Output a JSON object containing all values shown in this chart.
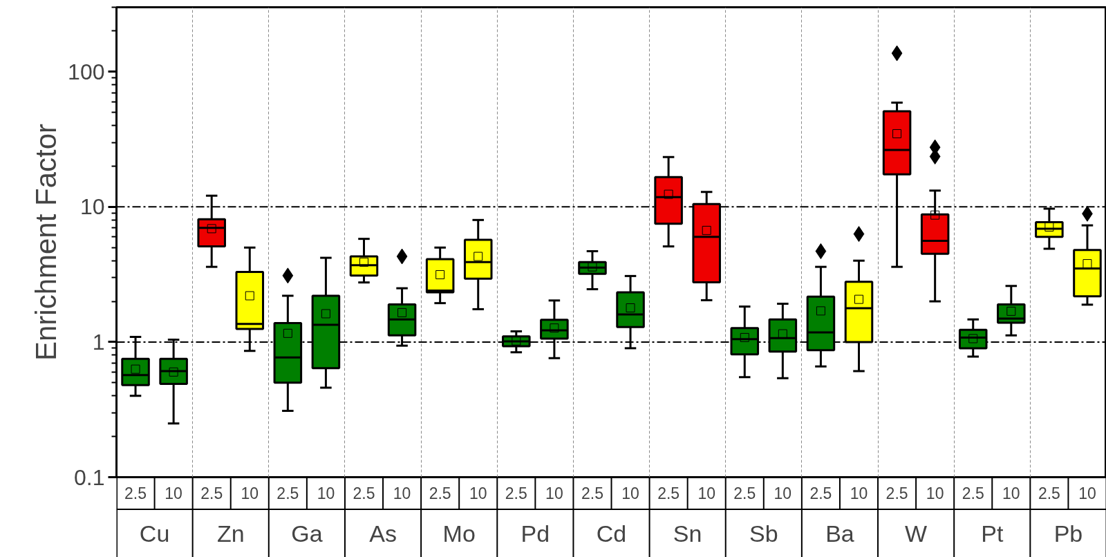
{
  "chart_data": {
    "type": "box",
    "ylabel": "Enrichment Factor",
    "categories": [
      "Cu",
      "Zn",
      "Ga",
      "As",
      "Mo",
      "Pd",
      "Cd",
      "Sn",
      "Sb",
      "Ba",
      "W",
      "Pt",
      "Pb"
    ],
    "series": [
      {
        "name": "2.5",
        "colors": [
          "#007f00",
          "#ee0000",
          "#007f00",
          "#ffff00",
          "#ffff00",
          "#007f00",
          "#007f00",
          "#ee0000",
          "#007f00",
          "#007f00",
          "#ee0000",
          "#007f00",
          "#ffff00"
        ],
        "boxes": [
          {
            "low": 0.4,
            "q1": 0.48,
            "median": 0.57,
            "q3": 0.75,
            "high": 1.09,
            "mean": 0.63
          },
          {
            "low": 3.6,
            "q1": 5.1,
            "median": 7.0,
            "q3": 8.1,
            "high": 12.1,
            "mean": 6.9
          },
          {
            "low": 0.31,
            "q1": 0.5,
            "median": 0.77,
            "q3": 1.38,
            "high": 2.2,
            "mean": 1.16,
            "outliers": [
              3.1
            ]
          },
          {
            "low": 2.76,
            "q1": 3.1,
            "median": 3.7,
            "q3": 4.3,
            "high": 5.8,
            "mean": 3.9
          },
          {
            "low": 1.94,
            "q1": 2.33,
            "median": 2.4,
            "q3": 4.1,
            "high": 5.0,
            "mean": 3.15
          },
          {
            "low": 0.84,
            "q1": 0.93,
            "median": 1.01,
            "q3": 1.1,
            "high": 1.2,
            "mean": 1.02
          },
          {
            "low": 2.46,
            "q1": 3.2,
            "median": 3.55,
            "q3": 3.9,
            "high": 4.7,
            "mean": 3.6
          },
          {
            "low": 5.1,
            "q1": 7.5,
            "median": 11.8,
            "q3": 16.6,
            "high": 23.4,
            "mean": 12.4
          },
          {
            "low": 0.55,
            "q1": 0.81,
            "median": 1.05,
            "q3": 1.27,
            "high": 1.83,
            "mean": 1.08
          },
          {
            "low": 0.66,
            "q1": 0.87,
            "median": 1.18,
            "q3": 2.17,
            "high": 3.6,
            "mean": 1.7,
            "outliers": [
              4.7
            ]
          },
          {
            "low": 3.6,
            "q1": 17.4,
            "median": 26.4,
            "q3": 51,
            "high": 59,
            "mean": 34.8,
            "outliers": [
              137
            ]
          },
          {
            "low": 0.78,
            "q1": 0.9,
            "median": 1.08,
            "q3": 1.23,
            "high": 1.47,
            "mean": 1.06
          },
          {
            "low": 4.9,
            "q1": 6.0,
            "median": 6.9,
            "q3": 7.7,
            "high": 9.7,
            "mean": 7.1
          }
        ]
      },
      {
        "name": "10",
        "colors": [
          "#007f00",
          "#ffff00",
          "#007f00",
          "#007f00",
          "#ffff00",
          "#007f00",
          "#007f00",
          "#ee0000",
          "#007f00",
          "#ffff00",
          "#ee0000",
          "#007f00",
          "#ffff00"
        ],
        "boxes": [
          {
            "low": 0.25,
            "q1": 0.49,
            "median": 0.61,
            "q3": 0.75,
            "high": 1.04,
            "mean": 0.6
          },
          {
            "low": 0.86,
            "q1": 1.25,
            "median": 1.36,
            "q3": 3.3,
            "high": 5.0,
            "mean": 2.2
          },
          {
            "low": 0.46,
            "q1": 0.64,
            "median": 1.34,
            "q3": 2.2,
            "high": 4.2,
            "mean": 1.62
          },
          {
            "low": 0.94,
            "q1": 1.12,
            "median": 1.47,
            "q3": 1.9,
            "high": 2.5,
            "mean": 1.65,
            "outliers": [
              4.3
            ]
          },
          {
            "low": 1.75,
            "q1": 2.94,
            "median": 3.9,
            "q3": 5.7,
            "high": 8.0,
            "mean": 4.3
          },
          {
            "low": 0.76,
            "q1": 1.06,
            "median": 1.22,
            "q3": 1.46,
            "high": 2.03,
            "mean": 1.27
          },
          {
            "low": 0.9,
            "q1": 1.29,
            "median": 1.6,
            "q3": 2.33,
            "high": 3.08,
            "mean": 1.79
          },
          {
            "low": 2.04,
            "q1": 2.77,
            "median": 6.0,
            "q3": 10.5,
            "high": 12.9,
            "mean": 6.7
          },
          {
            "low": 0.54,
            "q1": 0.85,
            "median": 1.07,
            "q3": 1.47,
            "high": 1.92,
            "mean": 1.15
          },
          {
            "low": 0.61,
            "q1": 1.0,
            "median": 1.78,
            "q3": 2.79,
            "high": 4.0,
            "mean": 2.07,
            "outliers": [
              6.3
            ]
          },
          {
            "low": 2.0,
            "q1": 4.5,
            "median": 5.6,
            "q3": 8.8,
            "high": 13.2,
            "mean": 8.7,
            "outliers": [
              23.6,
              27.6
            ]
          },
          {
            "low": 1.12,
            "q1": 1.39,
            "median": 1.49,
            "q3": 1.9,
            "high": 2.6,
            "mean": 1.69
          },
          {
            "low": 1.89,
            "q1": 2.18,
            "median": 3.5,
            "q3": 4.8,
            "high": 7.3,
            "mean": 3.8,
            "outliers": [
              8.9
            ]
          }
        ]
      }
    ],
    "log": "y",
    "ylim": [
      0.1,
      300
    ],
    "yticks": [
      0.1,
      1,
      10,
      100
    ],
    "ref_lines": [
      {
        "axis": "y",
        "value": 1,
        "line_style": "dashdot",
        "color": "#000000"
      },
      {
        "axis": "y",
        "value": 10,
        "line_style": "dashdot",
        "color": "#000000"
      }
    ],
    "grid": "x"
  }
}
